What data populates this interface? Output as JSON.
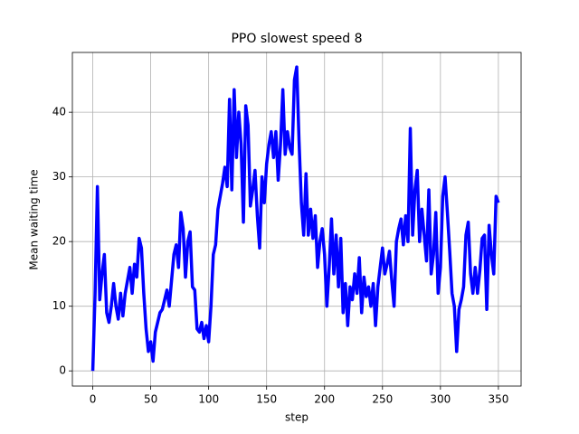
{
  "chart_data": {
    "type": "line",
    "title": "PPO slowest speed 8",
    "x_label": "step",
    "y_label": "Mean waiting time",
    "x": [
      0,
      2,
      4,
      6,
      8,
      10,
      12,
      14,
      16,
      18,
      20,
      22,
      24,
      26,
      28,
      30,
      32,
      34,
      36,
      38,
      40,
      42,
      44,
      46,
      48,
      50,
      52,
      54,
      56,
      58,
      60,
      62,
      64,
      66,
      68,
      70,
      72,
      74,
      76,
      78,
      80,
      82,
      84,
      86,
      88,
      90,
      92,
      94,
      96,
      98,
      100,
      102,
      104,
      106,
      108,
      110,
      112,
      114,
      116,
      118,
      120,
      122,
      124,
      126,
      128,
      130,
      132,
      134,
      136,
      138,
      140,
      142,
      144,
      146,
      148,
      150,
      152,
      154,
      156,
      158,
      160,
      162,
      164,
      166,
      168,
      170,
      172,
      174,
      176,
      178,
      180,
      182,
      184,
      186,
      188,
      190,
      192,
      194,
      196,
      198,
      200,
      202,
      204,
      206,
      208,
      210,
      212,
      214,
      216,
      218,
      220,
      222,
      224,
      226,
      228,
      230,
      232,
      234,
      236,
      238,
      240,
      242,
      244,
      246,
      248,
      250,
      252,
      254,
      256,
      258,
      260,
      262,
      264,
      266,
      268,
      270,
      272,
      274,
      276,
      278,
      280,
      282,
      284,
      286,
      288,
      290,
      292,
      294,
      296,
      298,
      300,
      302,
      304,
      306,
      308,
      310,
      312,
      314,
      316,
      318,
      320,
      322,
      324,
      326,
      328,
      330,
      332,
      334,
      336,
      338,
      340,
      342,
      344,
      346,
      348,
      350
    ],
    "values": [
      0,
      12,
      28.5,
      11,
      15,
      18,
      9,
      7.5,
      10,
      13.5,
      10,
      8,
      12,
      8.5,
      12,
      14,
      16,
      12,
      16.5,
      14.5,
      20.5,
      19,
      12,
      6.5,
      3,
      4.5,
      1.5,
      6,
      7.5,
      9,
      9.5,
      11,
      12.5,
      10,
      14,
      18,
      19.5,
      16,
      24.5,
      22,
      14.5,
      20,
      21.5,
      13,
      12.5,
      6.5,
      6,
      7.5,
      5,
      7,
      4.5,
      10,
      18,
      19.5,
      25,
      27,
      29,
      31.5,
      28.5,
      42,
      28,
      43.5,
      33,
      40,
      35,
      23,
      41,
      38,
      25.5,
      28,
      31,
      24,
      19,
      30,
      26,
      32,
      35,
      37,
      33,
      37,
      29.5,
      35,
      43.5,
      33.5,
      37,
      34.5,
      33.5,
      45,
      47,
      35.5,
      26,
      21,
      30.5,
      21,
      25,
      20.5,
      24,
      16,
      20,
      22,
      18,
      10,
      16,
      23.5,
      15,
      21,
      13,
      20.5,
      9,
      13.5,
      7,
      13,
      11,
      15,
      12,
      17.5,
      9,
      14.5,
      11.5,
      13,
      10,
      13.5,
      7,
      13,
      16,
      19,
      15,
      16.5,
      18.5,
      14,
      10,
      20,
      22,
      23.5,
      19.5,
      24,
      20,
      37.5,
      21,
      28,
      31,
      20,
      25,
      21,
      17,
      28,
      15,
      18,
      24.5,
      12,
      16,
      27,
      30,
      24.5,
      18.5,
      12,
      10,
      3,
      9.5,
      11,
      13,
      21,
      23,
      15,
      12,
      16,
      12,
      15.5,
      20.5,
      21,
      9.5,
      22.5,
      18,
      15,
      27,
      26
    ],
    "color": "#0000ff",
    "xlim": [
      -17.6,
      369.6
    ],
    "ylim": [
      -2.35,
      49.25
    ],
    "xticks": [
      0,
      50,
      100,
      150,
      200,
      250,
      300,
      350
    ],
    "yticks": [
      0,
      10,
      20,
      30,
      40
    ],
    "grid": true
  }
}
